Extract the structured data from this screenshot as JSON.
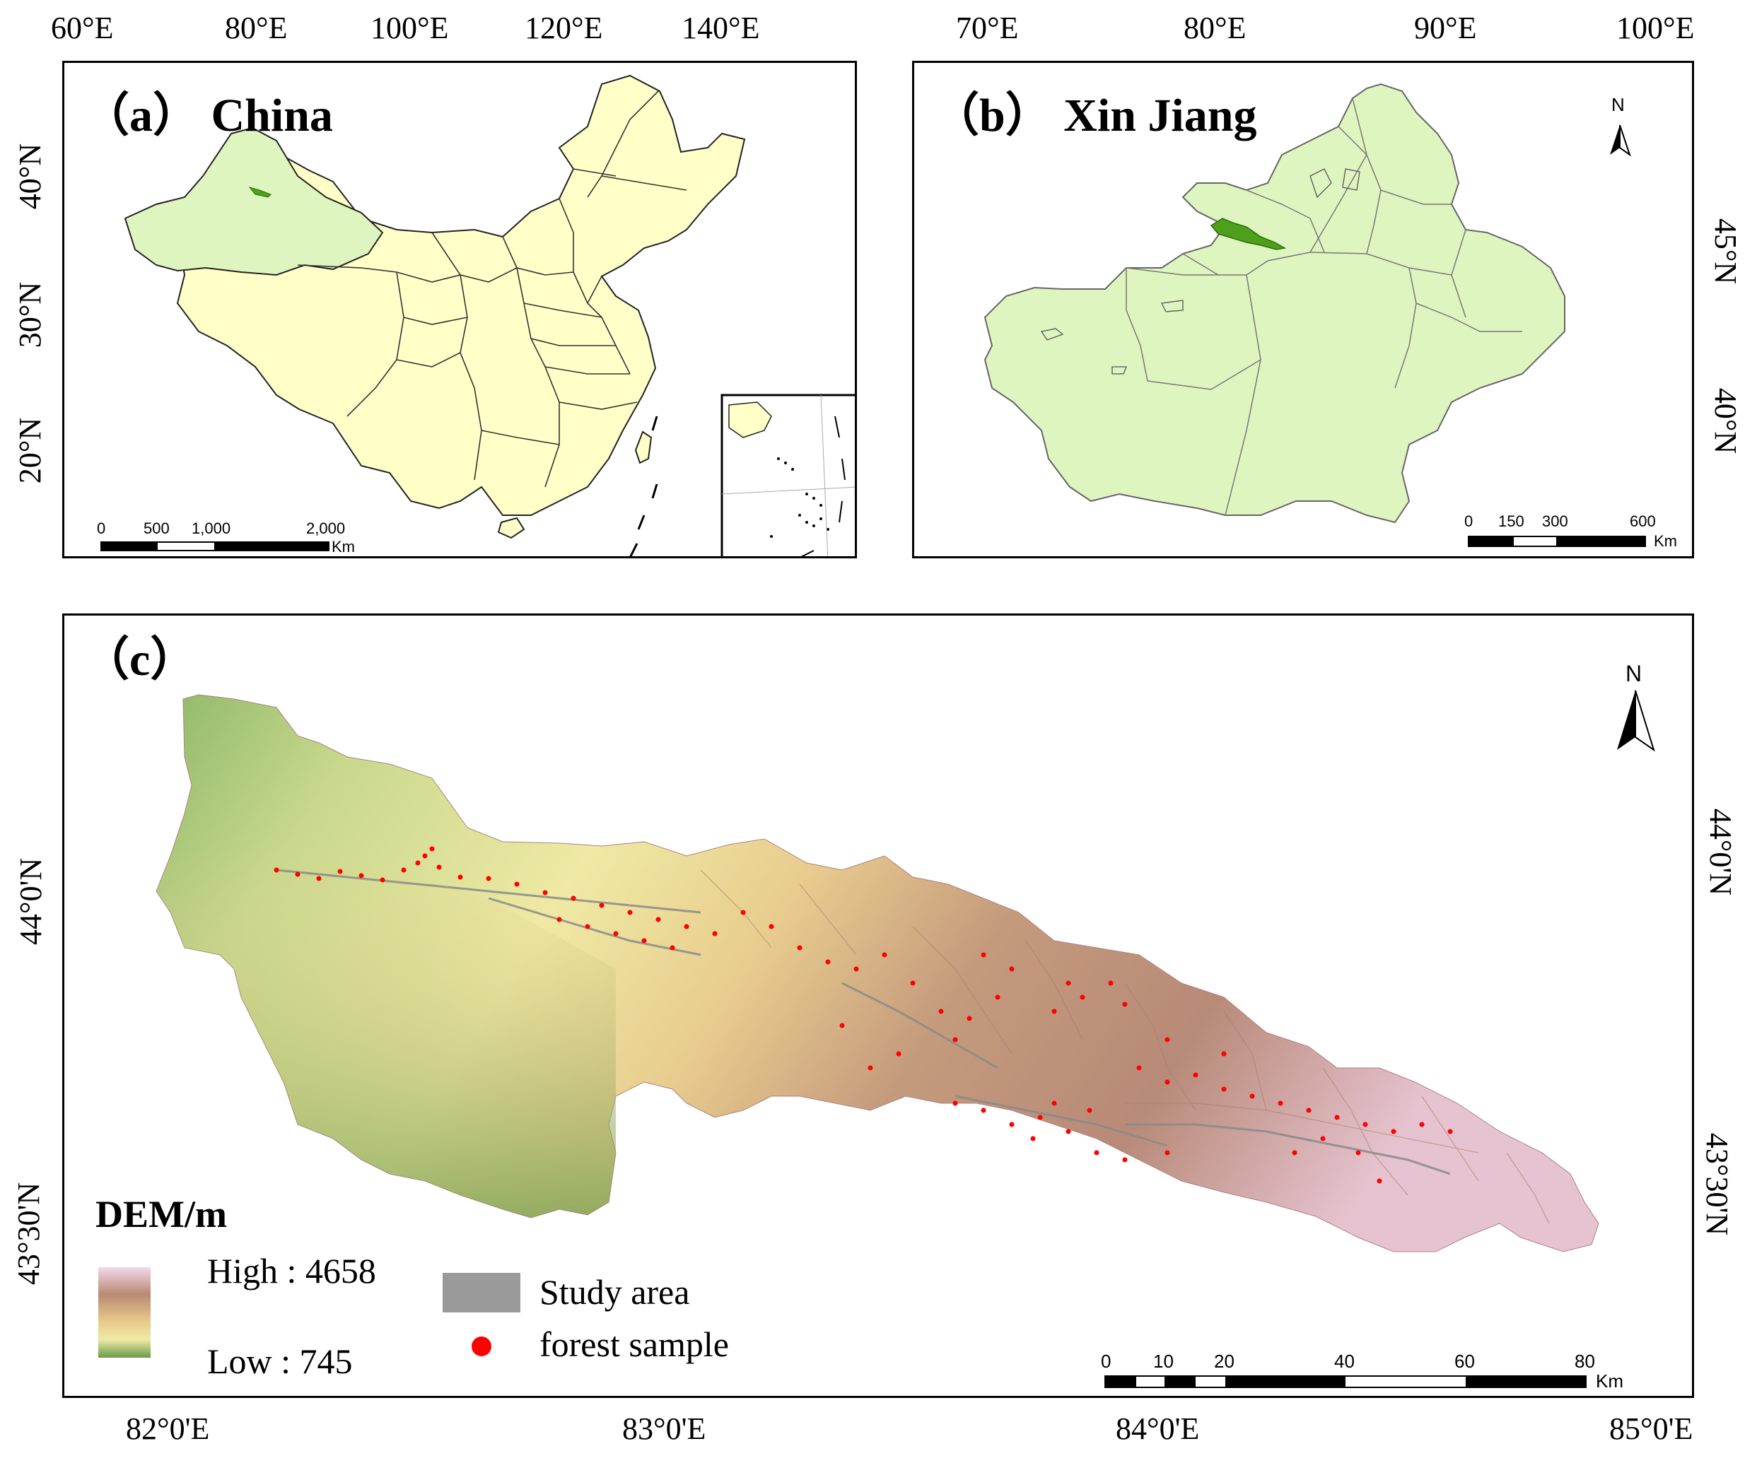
{
  "panel_a": {
    "title": "（a） China",
    "lon_ticks": [
      "60°E",
      "80°E",
      "100°E",
      "120°E",
      "140°E"
    ],
    "lat_ticks": [
      "40°N",
      "30°N",
      "20°N"
    ],
    "scale_labels": [
      "0",
      "500",
      "1,000",
      "2,000"
    ],
    "scale_unit": "Km"
  },
  "panel_b": {
    "title": "（b） Xin Jiang",
    "lon_ticks": [
      "70°E",
      "80°E",
      "90°E",
      "100°E"
    ],
    "lat_ticks": [
      "45°N",
      "40°N"
    ],
    "north_label": "N",
    "scale_labels": [
      "0",
      "150",
      "300",
      "600"
    ],
    "scale_unit": "Km"
  },
  "panel_c": {
    "title": "（c）",
    "lon_ticks": [
      "82°0'E",
      "83°0'E",
      "84°0'E",
      "85°0'E"
    ],
    "lat_ticks": [
      "44°0'N",
      "43°30'N"
    ],
    "north_label": "N",
    "scale_labels": [
      "0",
      "10",
      "20",
      "40",
      "60",
      "80"
    ],
    "scale_unit": "Km",
    "legend": {
      "title": "DEM/m",
      "high_label": "High : 4658",
      "low_label": "Low : 745",
      "study_area_label": "Study area",
      "forest_sample_label": "forest sample"
    }
  },
  "colors": {
    "china_fill": "#ffffc8",
    "xinjiang_fill": "#dff5c0",
    "study_area_green": "#4ca01c",
    "dem_high": "#f2d6e6",
    "dem_mid_high": "#b88a72",
    "dem_mid": "#e8c88a",
    "dem_mid_low": "#f1eda6",
    "dem_low": "#6a9a48",
    "study_area_gray": "#9a9a9a",
    "forest_sample": "#ff0000"
  }
}
